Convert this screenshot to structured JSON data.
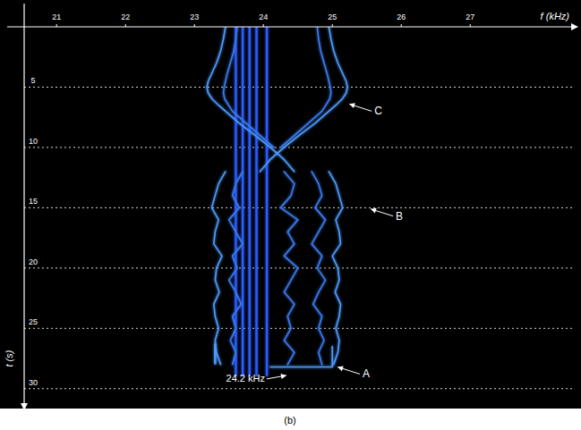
{
  "chart_data": {
    "type": "spectrogram",
    "x_label": "f (kHz)",
    "y_label": "t (s)",
    "caption": "(b)",
    "xlim": [
      20.53,
      28.49
    ],
    "xticks": [
      21,
      22,
      23,
      24,
      25,
      26,
      27
    ],
    "ylim": [
      31.5,
      0
    ],
    "yticks": [
      5,
      10,
      15,
      20,
      25,
      30
    ],
    "grid": true,
    "annotations": [
      {
        "text": "C",
        "x": 25.22,
        "y": 6.4
      },
      {
        "text": "B",
        "x": 25.53,
        "y": 15.1
      },
      {
        "text": "A",
        "x": 25.05,
        "y": 28.2
      },
      {
        "text": "24.2 kHz",
        "x": 24.36,
        "y": 28.9
      }
    ],
    "series": [
      {
        "color": "#2a5cff",
        "x": [
          23.6,
          23.6
        ],
        "values": [
          0,
          28.9
        ]
      },
      {
        "color": "#2a5cff",
        "x": [
          23.7,
          23.7
        ],
        "values": [
          0,
          28.9
        ]
      },
      {
        "color": "#2a5cff",
        "x": [
          23.8,
          23.8
        ],
        "values": [
          0,
          28.9
        ]
      },
      {
        "color": "#2a5cff",
        "x": [
          23.9,
          23.9
        ],
        "values": [
          0,
          28.9
        ]
      },
      {
        "color": "#2a5cff",
        "x": [
          24.05,
          24.05
        ],
        "values": [
          0,
          28.9
        ]
      },
      {
        "color": "#4d9bff",
        "x": [
          23.45,
          23.42,
          23.38,
          23.32,
          23.24,
          23.2,
          23.18,
          23.2,
          23.26,
          23.35,
          23.45,
          23.65,
          23.88,
          24.1,
          24.3,
          24.45
        ],
        "values": [
          0,
          1,
          2,
          3,
          4,
          4.5,
          5,
          5.5,
          6,
          6.5,
          7,
          8,
          9,
          10,
          11,
          12
        ]
      },
      {
        "color": "#4d9bff",
        "x": [
          24.95,
          24.98,
          25.02,
          25.08,
          25.16,
          25.2,
          25.22,
          25.2,
          25.14,
          25.05,
          24.95,
          24.75,
          24.52,
          24.3,
          24.1,
          23.95
        ],
        "values": [
          0,
          1,
          2,
          3,
          4,
          4.5,
          5,
          5.5,
          6,
          6.5,
          7,
          8,
          9,
          10,
          11,
          12
        ]
      },
      {
        "color": "#3a7cf0",
        "x": [
          23.62,
          23.6,
          23.57,
          23.52,
          23.47,
          23.43,
          23.42,
          23.44,
          23.55,
          23.75,
          23.95,
          24.15
        ],
        "values": [
          0,
          1,
          2,
          3,
          4,
          5,
          5.5,
          6,
          7,
          8,
          9,
          10
        ]
      },
      {
        "color": "#3a7cf0",
        "x": [
          24.78,
          24.8,
          24.83,
          24.88,
          24.93,
          24.97,
          24.98,
          24.96,
          24.85,
          24.65,
          24.45,
          24.25
        ],
        "values": [
          0,
          1,
          2,
          3,
          4,
          5,
          5.5,
          6,
          7,
          8,
          9,
          10
        ]
      },
      {
        "color": "#4d9bff",
        "x": [
          23.45,
          23.35,
          23.3,
          23.25,
          23.35,
          23.3,
          23.28,
          23.4,
          23.32,
          23.3,
          23.36,
          23.28,
          23.3,
          23.35,
          23.3,
          23.32,
          23.38
        ],
        "values": [
          12,
          13,
          14,
          15,
          16,
          17,
          18,
          19,
          20,
          21,
          22,
          23,
          24,
          25,
          26,
          27,
          28
        ]
      },
      {
        "color": "#4d9bff",
        "x": [
          24.95,
          25.05,
          25.1,
          25.15,
          25.05,
          25.1,
          25.12,
          25.0,
          25.08,
          25.1,
          25.04,
          25.12,
          25.1,
          25.05,
          25.1,
          25.08,
          25.02
        ],
        "values": [
          12,
          13,
          14,
          15,
          16,
          17,
          18,
          19,
          20,
          21,
          22,
          23,
          24,
          25,
          26,
          27,
          28
        ]
      },
      {
        "color": "#3a7cf0",
        "x": [
          23.7,
          23.6,
          23.55,
          23.65,
          23.5,
          23.6,
          23.7,
          23.55,
          23.62,
          23.5,
          23.6,
          23.68,
          23.55,
          23.6,
          23.52,
          23.6,
          23.55
        ],
        "values": [
          12,
          13,
          14,
          15,
          16,
          17,
          18,
          19,
          20,
          21,
          22,
          23,
          24,
          25,
          26,
          27,
          28
        ]
      },
      {
        "color": "#3a7cf0",
        "x": [
          24.7,
          24.8,
          24.85,
          24.75,
          24.9,
          24.8,
          24.7,
          24.85,
          24.78,
          24.9,
          24.8,
          24.72,
          24.85,
          24.8,
          24.88,
          24.8,
          24.85
        ],
        "values": [
          12,
          13,
          14,
          15,
          16,
          17,
          18,
          19,
          20,
          21,
          22,
          23,
          24,
          25,
          26,
          27,
          28
        ]
      },
      {
        "color": "#3a7cf0",
        "x": [
          24.3,
          24.45,
          24.4,
          24.25,
          24.5,
          24.35,
          24.45,
          24.3,
          24.5,
          24.4,
          24.3,
          24.45,
          24.35,
          24.4,
          24.3,
          24.45,
          24.35
        ],
        "values": [
          12,
          13,
          14,
          15,
          16,
          17,
          18,
          19,
          20,
          21,
          22,
          23,
          24,
          25,
          26,
          27,
          28
        ]
      },
      {
        "color": "#4d9bff",
        "x": [
          25.0,
          25.0,
          24.1
        ],
        "values": [
          26.5,
          28.2,
          28.2
        ]
      },
      {
        "color": "#4d9bff",
        "x": [
          23.3,
          23.3
        ],
        "values": [
          26.3,
          27.9
        ]
      }
    ]
  }
}
